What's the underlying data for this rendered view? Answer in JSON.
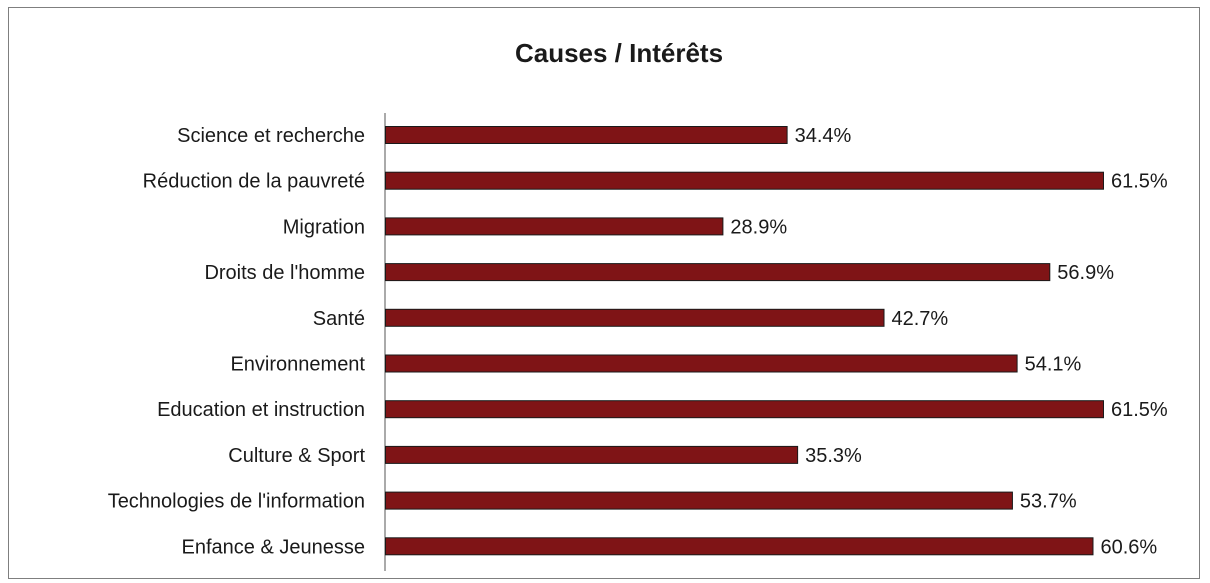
{
  "chart_data": {
    "type": "bar",
    "orientation": "horizontal",
    "title": "Causes / Intérêts",
    "xlabel": "",
    "ylabel": "",
    "categories": [
      "Science et recherche",
      "Réduction de la pauvreté",
      "Migration",
      "Droits de l'homme",
      "Santé",
      "Environnement",
      "Education et instruction",
      "Culture & Sport",
      "Technologies de l'information",
      "Enfance & Jeunesse"
    ],
    "values": [
      34.4,
      61.5,
      28.9,
      56.9,
      42.7,
      54.1,
      61.5,
      35.3,
      53.7,
      60.6
    ],
    "value_labels": [
      "34.4%",
      "61.5%",
      "28.9%",
      "56.9%",
      "42.7%",
      "54.1%",
      "61.5%",
      "35.3%",
      "53.7%",
      "60.6%"
    ],
    "xlim": [
      0,
      61.5
    ],
    "grid": false,
    "legend": "none",
    "bar_color": "#7f1416",
    "bar_edge_color": "#1a1a1a"
  }
}
